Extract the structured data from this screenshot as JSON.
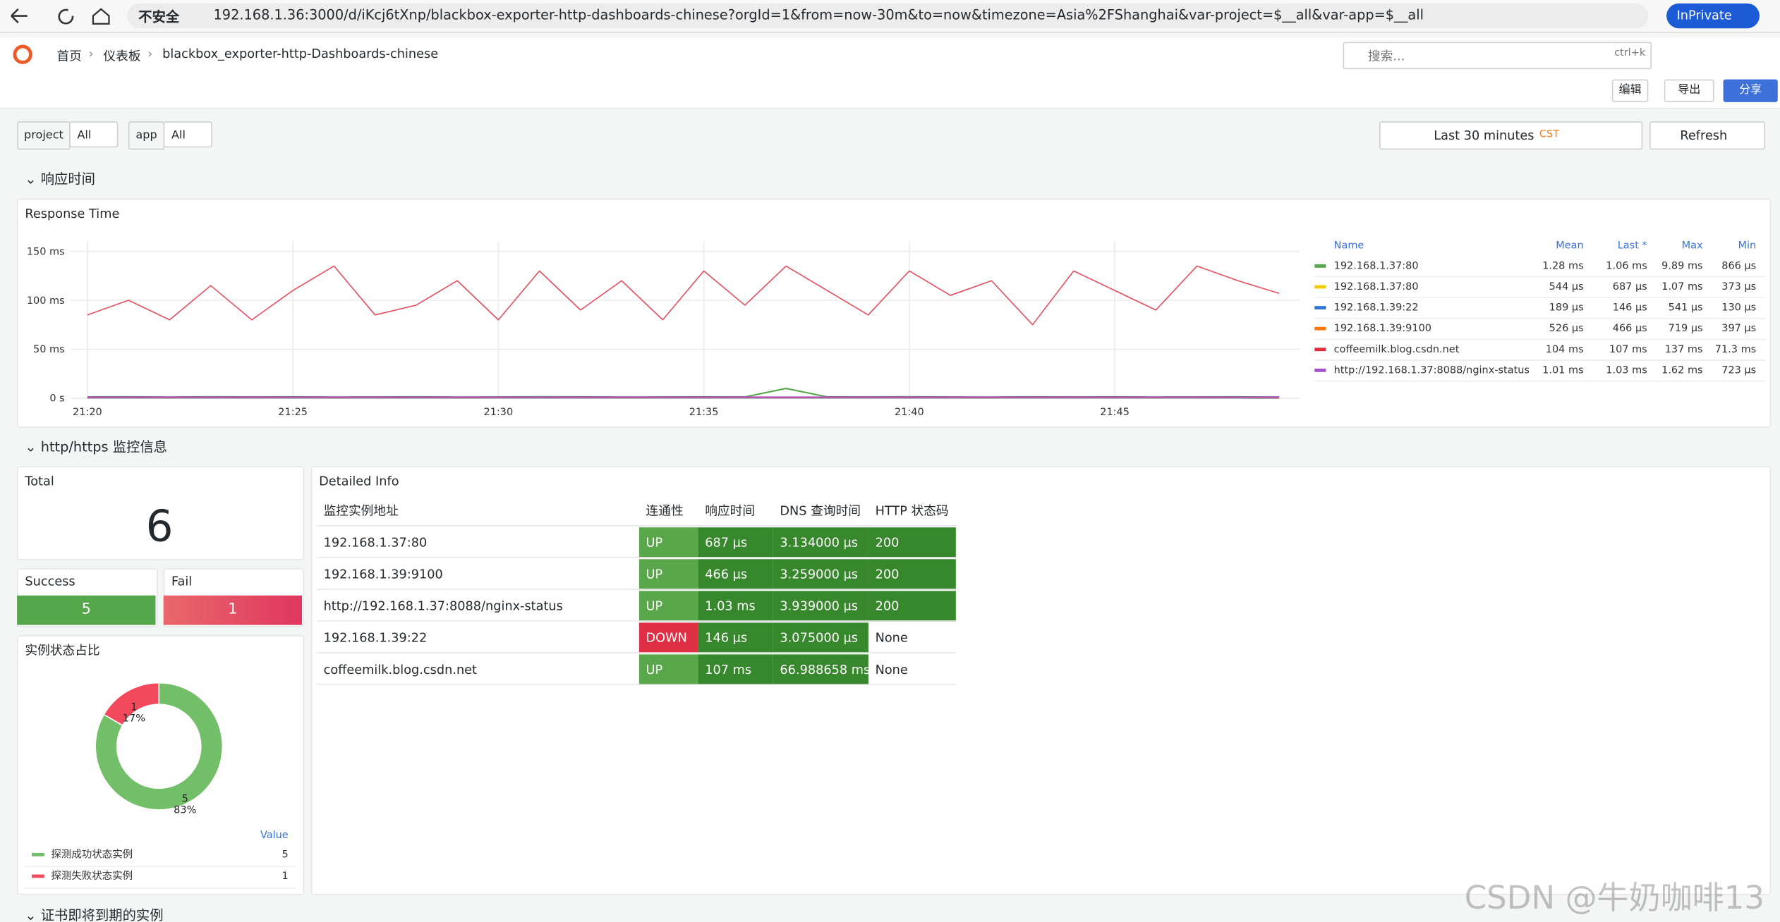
{
  "browser": {
    "security": "不安全",
    "url": "192.168.1.36:3000/d/iKcj6tXnp/blackbox-exporter-http-dashboards-chinese?orgId=1&from=now-30m&to=now&timezone=Asia%2FShanghai&var-project=$__all&var-app=$__all",
    "private": "InPrivate"
  },
  "nav": {
    "breadcrumb": [
      "首页",
      "仪表板",
      "blackbox_exporter-http-Dashboards-chinese"
    ],
    "search": "搜索...",
    "shortcut": "ctrl+k",
    "buttons": [
      "编辑",
      "导出",
      "分享"
    ]
  },
  "variables": [
    {
      "name": "project",
      "value": "All"
    },
    {
      "name": "app",
      "value": "All"
    }
  ],
  "time_picker": {
    "range": "Last 30 minutes",
    "zone": "CST",
    "refresh": "Refresh"
  },
  "rows": [
    "响应时间",
    "http/https 监控信息",
    "证书即将到期的实例"
  ],
  "chart_data": [
    {
      "type": "line",
      "title": "Response Time",
      "x": [
        "21:20",
        "21:21",
        "21:22",
        "21:23",
        "21:24",
        "21:25",
        "21:26",
        "21:27",
        "21:28",
        "21:29",
        "21:30",
        "21:31",
        "21:32",
        "21:33",
        "21:34",
        "21:35",
        "21:36",
        "21:37",
        "21:38",
        "21:39",
        "21:40",
        "21:41",
        "21:42",
        "21:43",
        "21:44",
        "21:45",
        "21:46",
        "21:47",
        "21:48",
        "21:49"
      ],
      "xticks": [
        "21:20",
        "21:25",
        "21:30",
        "21:35",
        "21:40",
        "21:45"
      ],
      "ylim": [
        0,
        160
      ],
      "yticks": [
        {
          "value": 0,
          "label": "0 s"
        },
        {
          "value": 50,
          "label": "50 ms"
        },
        {
          "value": 100,
          "label": "100 ms"
        },
        {
          "value": 150,
          "label": "150 ms"
        }
      ],
      "grid": true,
      "legend_columns": [
        "Name",
        "Mean",
        "Last *",
        "Max",
        "Min"
      ],
      "series": [
        {
          "name": "192.168.1.37:80",
          "color": "#56a64b",
          "mean": "1.28 ms",
          "last": "1.06 ms",
          "max": "9.89 ms",
          "min": "866 µs",
          "values": [
            1.2,
            1.3,
            1.1,
            1.4,
            1.2,
            1.3,
            1.1,
            1.2,
            1.3,
            1.1,
            1.2,
            1.4,
            1.3,
            1.1,
            1.2,
            1.3,
            1.2,
            9.9,
            1.3,
            1.2,
            1.4,
            1.2,
            1.1,
            1.3,
            1.2,
            1.3,
            1.1,
            1.2,
            1.3,
            1.1
          ]
        },
        {
          "name": "192.168.1.37:80",
          "color": "#f2cc0c",
          "mean": "544 µs",
          "last": "687 µs",
          "max": "1.07 ms",
          "min": "373 µs",
          "values": [
            0.5,
            0.6,
            0.5,
            0.5,
            0.6,
            0.5,
            0.5,
            0.6,
            0.5,
            0.5,
            0.6,
            0.5,
            0.5,
            0.6,
            0.5,
            0.5,
            0.6,
            0.5,
            0.5,
            0.6,
            0.5,
            0.5,
            0.6,
            0.5,
            0.5,
            0.6,
            0.5,
            0.5,
            0.6,
            0.7
          ]
        },
        {
          "name": "192.168.1.39:22",
          "color": "#3274d9",
          "mean": "189 µs",
          "last": "146 µs",
          "max": "541 µs",
          "min": "130 µs",
          "values": [
            0.2,
            0.2,
            0.2,
            0.2,
            0.2,
            0.2,
            0.2,
            0.2,
            0.2,
            0.2,
            0.2,
            0.2,
            0.2,
            0.2,
            0.2,
            0.2,
            0.2,
            0.2,
            0.2,
            0.2,
            0.2,
            0.2,
            0.2,
            0.2,
            0.2,
            0.2,
            0.2,
            0.2,
            0.2,
            0.15
          ]
        },
        {
          "name": "192.168.1.39:9100",
          "color": "#ff780a",
          "mean": "526 µs",
          "last": "466 µs",
          "max": "719 µs",
          "min": "397 µs",
          "values": [
            0.5,
            0.5,
            0.5,
            0.5,
            0.5,
            0.5,
            0.5,
            0.5,
            0.5,
            0.5,
            0.5,
            0.5,
            0.5,
            0.5,
            0.5,
            0.5,
            0.5,
            0.5,
            0.5,
            0.5,
            0.5,
            0.5,
            0.5,
            0.5,
            0.5,
            0.5,
            0.5,
            0.5,
            0.5,
            0.47
          ]
        },
        {
          "name": "coffeemilk.blog.csdn.net",
          "color": "#e02f44",
          "mean": "104 ms",
          "last": "107 ms",
          "max": "137 ms",
          "min": "71.3 ms",
          "values": [
            85,
            100,
            80,
            115,
            80,
            110,
            135,
            85,
            95,
            120,
            80,
            130,
            90,
            120,
            80,
            130,
            95,
            135,
            110,
            85,
            130,
            105,
            120,
            75,
            130,
            110,
            90,
            135,
            120,
            107
          ]
        },
        {
          "name": "http://192.168.1.37:8088/nginx-status",
          "color": "#a352cc",
          "mean": "1.01 ms",
          "last": "1.03 ms",
          "max": "1.62 ms",
          "min": "723 µs",
          "values": [
            1.0,
            1.0,
            1.0,
            1.0,
            1.0,
            1.0,
            1.0,
            1.0,
            1.0,
            1.0,
            1.0,
            1.0,
            1.0,
            1.0,
            1.0,
            1.0,
            1.0,
            1.0,
            1.0,
            1.0,
            1.0,
            1.0,
            1.0,
            1.0,
            1.0,
            1.0,
            1.0,
            1.0,
            1.0,
            1.03
          ]
        }
      ]
    },
    {
      "type": "pie",
      "title": "实例状态占比",
      "legend_header": "Value",
      "categories": [
        "探测成功状态实例",
        "探测失败状态实例"
      ],
      "values": [
        5,
        1
      ],
      "percent_labels": [
        "83%",
        "17%"
      ],
      "colors": [
        "#73bf69",
        "#f2495c"
      ]
    }
  ],
  "stats": {
    "total": {
      "title": "Total",
      "value": 6
    },
    "success": {
      "title": "Success",
      "value": 5
    },
    "fail": {
      "title": "Fail",
      "value": 1
    }
  },
  "detail_table": {
    "title": "Detailed Info",
    "headers": [
      "监控实例地址",
      "连通性",
      "响应时间",
      "DNS 查询时间",
      "HTTP 状态码"
    ],
    "rows": [
      [
        "192.168.1.37:80",
        "UP",
        "687 µs",
        "3.134000 µs",
        "200"
      ],
      [
        "192.168.1.39:9100",
        "UP",
        "466 µs",
        "3.259000 µs",
        "200"
      ],
      [
        "http://192.168.1.37:8088/nginx-status",
        "UP",
        "1.03 ms",
        "3.939000 µs",
        "200"
      ],
      [
        "192.168.1.39:22",
        "DOWN",
        "146 µs",
        "3.075000 µs",
        "None"
      ],
      [
        "coffeemilk.blog.csdn.net",
        "UP",
        "107 ms",
        "66.988658 ms",
        "None"
      ]
    ]
  },
  "watermark": "CSDN @牛奶咖啡13"
}
